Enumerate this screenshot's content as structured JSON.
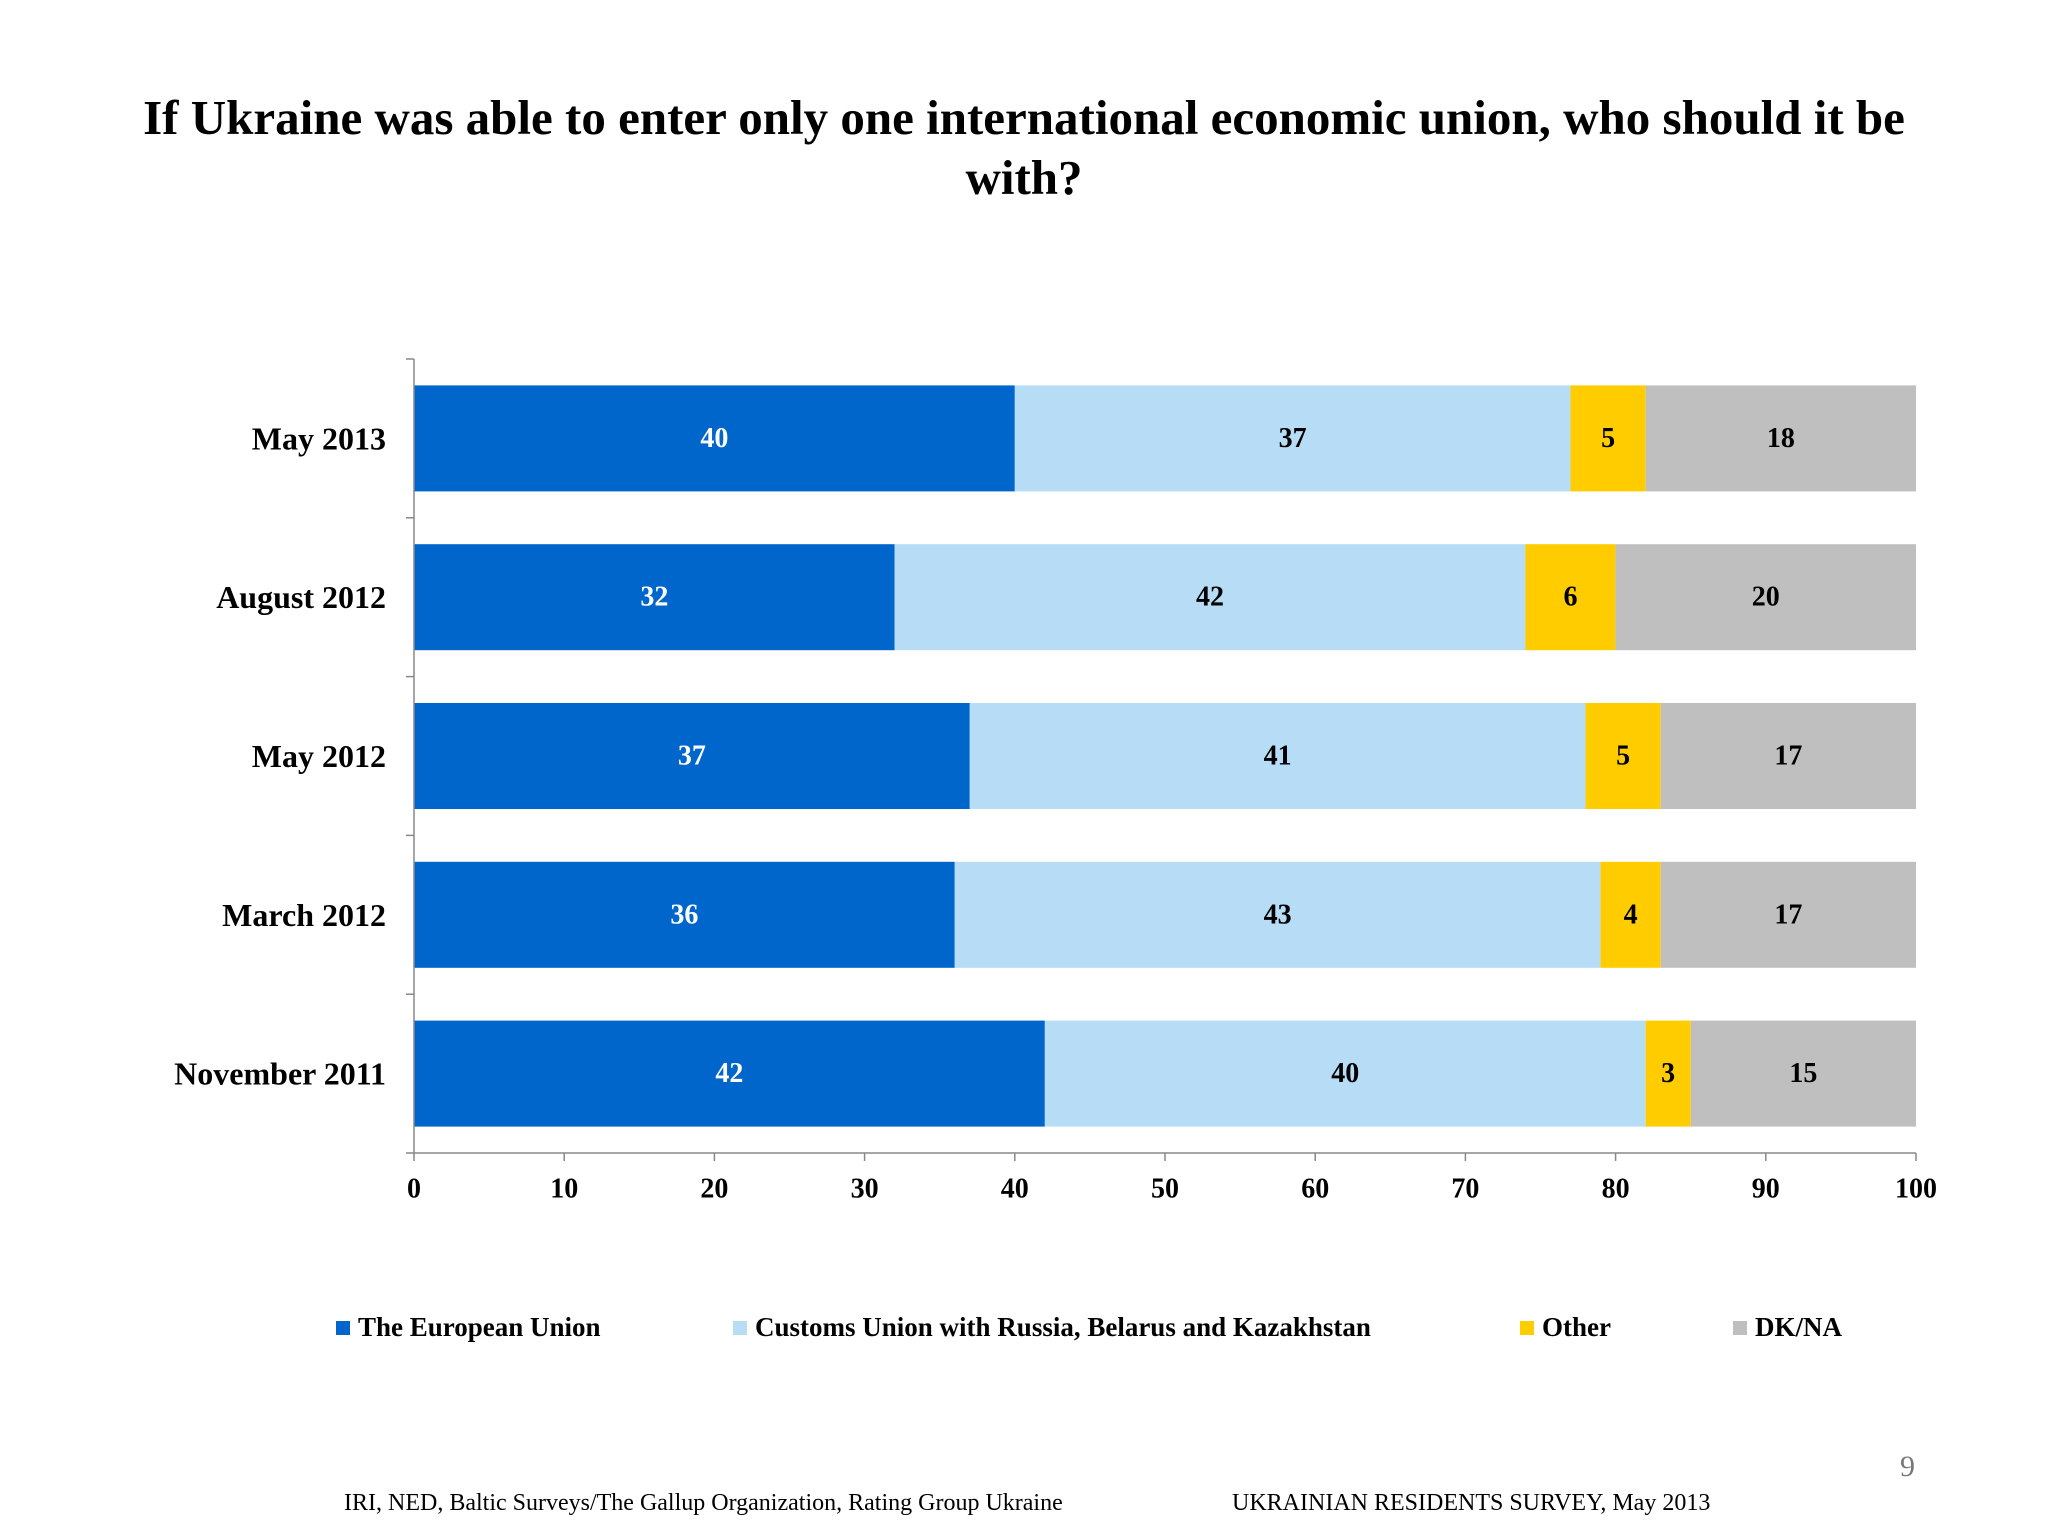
{
  "title": "If Ukraine was able to enter only one international economic union, who should it be with?",
  "chart_data": {
    "type": "bar",
    "orientation": "horizontal",
    "stacked": true,
    "categories": [
      "May 2013",
      "August 2012",
      "May 2012",
      "March 2012",
      "November 2011"
    ],
    "series": [
      {
        "name": "The European Union",
        "color": "#0066CC",
        "label_color": "#FFFFFF",
        "values": [
          40,
          32,
          37,
          36,
          42
        ]
      },
      {
        "name": "Customs Union with Russia, Belarus and Kazakhstan",
        "color": "#B6DCF6",
        "label_color": "#000000",
        "values": [
          37,
          42,
          41,
          43,
          40
        ]
      },
      {
        "name": "Other",
        "color": "#FFCC00",
        "label_color": "#000000",
        "values": [
          5,
          6,
          5,
          4,
          3
        ]
      },
      {
        "name": "DK/NA",
        "color": "#C0BFC0",
        "label_color": "#000000",
        "values": [
          18,
          20,
          17,
          17,
          15
        ]
      }
    ],
    "xlim": [
      0,
      100
    ],
    "xticks": [
      0,
      10,
      20,
      30,
      40,
      50,
      60,
      70,
      80,
      90,
      100
    ],
    "grid": false,
    "legend_position": "bottom"
  },
  "footer": {
    "source": "IRI, NED,  Baltic Surveys/The Gallup Organization, Rating Group Ukraine",
    "survey": "UKRAINIAN RESIDENTS SURVEY, May  2013"
  },
  "page_number": "9"
}
